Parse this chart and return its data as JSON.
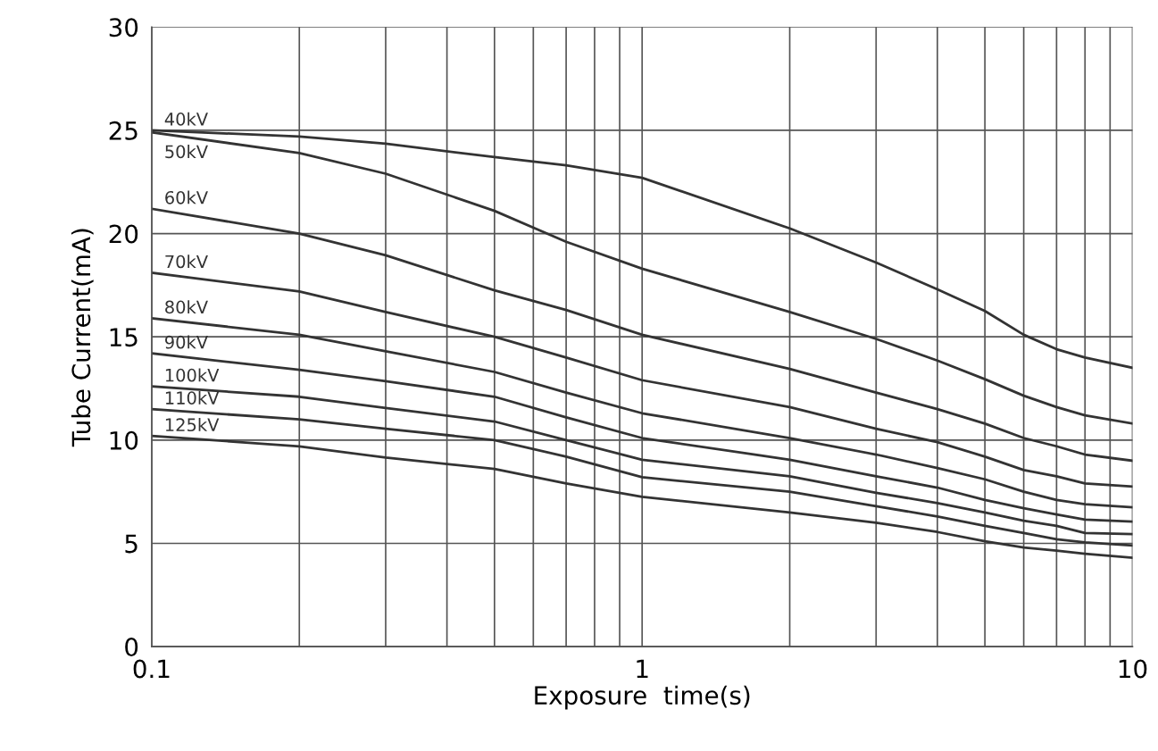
{
  "chart_data": {
    "type": "line",
    "xlabel": "Exposure  time(s)",
    "ylabel": "Tube Current(mA)",
    "log": "x",
    "xlim": [
      0.1,
      10
    ],
    "xticks": [
      0.1,
      1,
      10
    ],
    "ylim": [
      0,
      30
    ],
    "yticks": [
      0,
      5,
      10,
      15,
      20,
      25,
      30
    ],
    "grid": true,
    "legend": false,
    "marker": "none",
    "line_style": "solid",
    "x": [
      0.1,
      0.2,
      0.3,
      0.5,
      0.7,
      1,
      2,
      3,
      4,
      5,
      6,
      7,
      8,
      10
    ],
    "series": [
      {
        "name": "40kV",
        "color": "#333333",
        "values": [
          25.0,
          24.7,
          24.35,
          23.7,
          23.3,
          22.7,
          20.25,
          18.6,
          17.3,
          16.25,
          15.1,
          14.4,
          14.0,
          13.5
        ]
      },
      {
        "name": "50kV",
        "color": "#333333",
        "values": [
          24.9,
          23.9,
          22.9,
          21.1,
          19.6,
          18.3,
          16.2,
          14.9,
          13.85,
          12.95,
          12.15,
          11.6,
          11.2,
          10.8
        ]
      },
      {
        "name": "60kV",
        "color": "#333333",
        "values": [
          21.2,
          20.0,
          18.95,
          17.25,
          16.3,
          15.1,
          13.45,
          12.3,
          11.5,
          10.8,
          10.1,
          9.7,
          9.3,
          9.0
        ]
      },
      {
        "name": "70kV",
        "color": "#333333",
        "values": [
          18.1,
          17.2,
          16.2,
          15.0,
          14.0,
          12.9,
          11.6,
          10.55,
          9.9,
          9.2,
          8.55,
          8.25,
          7.9,
          7.75
        ]
      },
      {
        "name": "80kV",
        "color": "#333333",
        "values": [
          15.9,
          15.1,
          14.3,
          13.3,
          12.3,
          11.3,
          10.1,
          9.3,
          8.65,
          8.1,
          7.5,
          7.1,
          6.9,
          6.75
        ]
      },
      {
        "name": "90kV",
        "color": "#333333",
        "values": [
          14.2,
          13.4,
          12.85,
          12.1,
          11.1,
          10.1,
          9.05,
          8.25,
          7.7,
          7.1,
          6.7,
          6.4,
          6.15,
          6.05
        ]
      },
      {
        "name": "100kV",
        "color": "#333333",
        "values": [
          12.6,
          12.1,
          11.55,
          10.9,
          10.0,
          9.05,
          8.25,
          7.45,
          6.95,
          6.5,
          6.1,
          5.85,
          5.5,
          5.45
        ]
      },
      {
        "name": "110kV",
        "color": "#333333",
        "values": [
          11.5,
          11.0,
          10.55,
          10.0,
          9.2,
          8.2,
          7.5,
          6.8,
          6.3,
          5.85,
          5.5,
          5.2,
          5.05,
          4.9
        ]
      },
      {
        "name": "125kV",
        "color": "#333333",
        "values": [
          10.2,
          9.7,
          9.15,
          8.6,
          7.9,
          7.25,
          6.5,
          6.0,
          5.55,
          5.1,
          4.8,
          4.65,
          4.5,
          4.3
        ]
      }
    ]
  }
}
